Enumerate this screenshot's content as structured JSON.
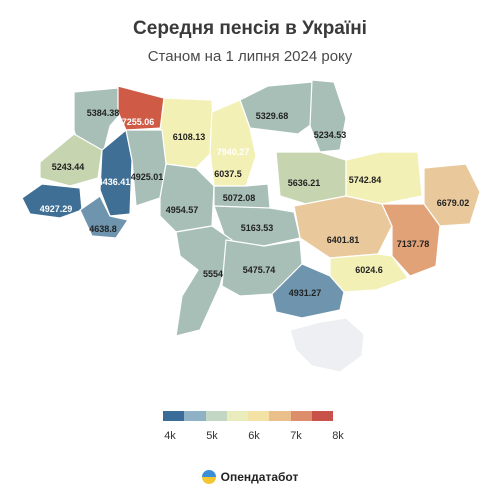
{
  "header": {
    "title": "Середня пенсія в Україні",
    "subtitle": "Станом на 1 липня 2024 року"
  },
  "map": {
    "values": [
      "5384.38",
      "7255.06",
      "6108.13",
      "5329.68",
      "5234.53",
      "5243.44",
      "4436.41",
      "4925.01",
      "7940.27",
      "6037.5",
      "5636.21",
      "5742.84",
      "6679.02",
      "4927.29",
      "4954.57",
      "5072.08",
      "4638.8",
      "5163.53",
      "6401.81",
      "7137.78",
      "5554",
      "5475.74",
      "6024.6",
      "4931.27"
    ],
    "colors": {
      "very_low": "#3f6f95",
      "low": "#6e95ad",
      "mid_low": "#a7bfb6",
      "mid": "#c6d5b0",
      "mid_high": "#f3f0b6",
      "high": "#e9c99c",
      "higher": "#e2a277",
      "top": "#cf5b47",
      "unknown": "#eeeff2"
    }
  },
  "legend": {
    "ticks": [
      "4k",
      "5k",
      "6k",
      "7k",
      "8k"
    ],
    "colors": [
      "#3a6c99",
      "#8fb1c6",
      "#c3d7c4",
      "#ebecbb",
      "#f4e1a6",
      "#eabf8b",
      "#dc8d6c",
      "#c85148"
    ]
  },
  "footer": {
    "brand": "Опендатабот"
  }
}
